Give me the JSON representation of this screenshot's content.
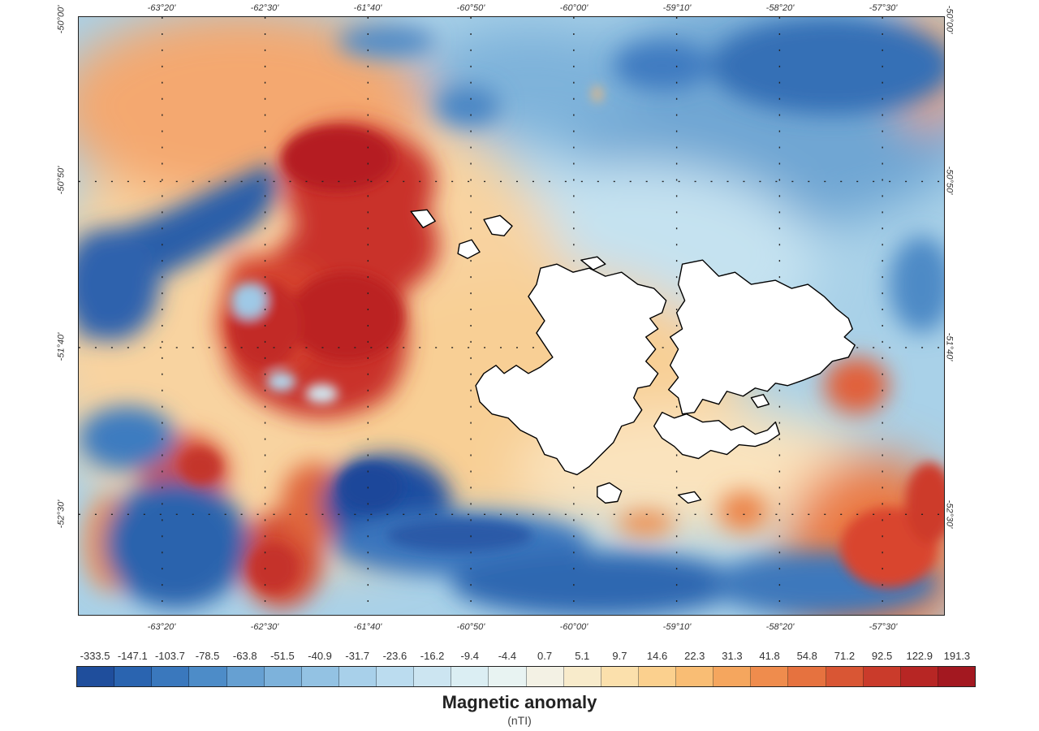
{
  "map": {
    "top_lon_labels": [
      "-63°20'",
      "-62°30'",
      "-61°40'",
      "-60°50'",
      "-60°00'",
      "-59°10'",
      "-58°20'",
      "-57°30'"
    ],
    "bottom_lon_labels": [
      "-63°20'",
      "-62°30'",
      "-61°40'",
      "-60°50'",
      "-60°00'",
      "-59°10'",
      "-58°20'",
      "-57°30'"
    ],
    "left_lat_labels": [
      "-50°00'",
      "-50°50'",
      "-51°40'",
      "-52°30'"
    ],
    "right_lat_labels": [
      "-50°00'",
      "-50°50'",
      "-51°40'",
      "-52°30'"
    ]
  },
  "legend": {
    "title": "Magnetic anomaly",
    "unit": "(nTI)",
    "labels": [
      "-333.5",
      "-147.1",
      "-103.7",
      "-78.5",
      "-63.8",
      "-51.5",
      "-40.9",
      "-31.7",
      "-23.6",
      "-16.2",
      "-9.4",
      "-4.4",
      "0.7",
      "5.1",
      "9.7",
      "14.6",
      "22.3",
      "31.3",
      "41.8",
      "54.8",
      "71.2",
      "92.5",
      "122.9",
      "191.3"
    ],
    "colors": [
      "#1f4e9c",
      "#2a64b0",
      "#3a78bd",
      "#4d8cc8",
      "#66a0d2",
      "#7db2db",
      "#93c2e3",
      "#a8d0ea",
      "#bbdcef",
      "#cce5f1",
      "#dbeef3",
      "#e8f3f2",
      "#f3f1e4",
      "#f8ebcb",
      "#fbe0ac",
      "#fbd08e",
      "#f9bd74",
      "#f5a65e",
      "#ef8c4d",
      "#e6723f",
      "#d95634",
      "#ca3b2b",
      "#b72624",
      "#a31820"
    ]
  }
}
